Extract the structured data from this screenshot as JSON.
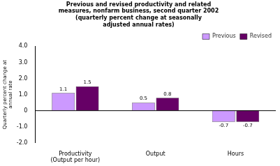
{
  "chart_data": {
    "type": "bar",
    "title": "Previous and revised productivity and related\nmeasures, nonfarm business, second quarter 2002\n(quarterly percent change at seasonally\nadjusted annual rates)",
    "categories": [
      "Productivity\n(Output per hour)",
      "Output",
      "Hours"
    ],
    "series": [
      {
        "name": "Previous",
        "color": "#cc99ff",
        "values": [
          1.1,
          0.5,
          -0.7
        ]
      },
      {
        "name": "Revised",
        "color": "#660066",
        "values": [
          1.5,
          0.8,
          -0.7
        ]
      }
    ],
    "ylabel": "Quarterly percent change at\nannual rate",
    "ylim": [
      -2.0,
      4.0
    ],
    "yticks": [
      {
        "value": -2.0,
        "label": "-2.0"
      },
      {
        "value": -1.0,
        "label": "-1.0"
      },
      0,
      {
        "value": 1.0,
        "label": "1.0"
      },
      {
        "value": 2.0,
        "label": "2.0"
      },
      {
        "value": 3.0,
        "label": "3.0"
      },
      {
        "value": 4.0,
        "label": "4.0"
      }
    ],
    "data_labels": true,
    "legend": "upper right",
    "grid": false
  }
}
